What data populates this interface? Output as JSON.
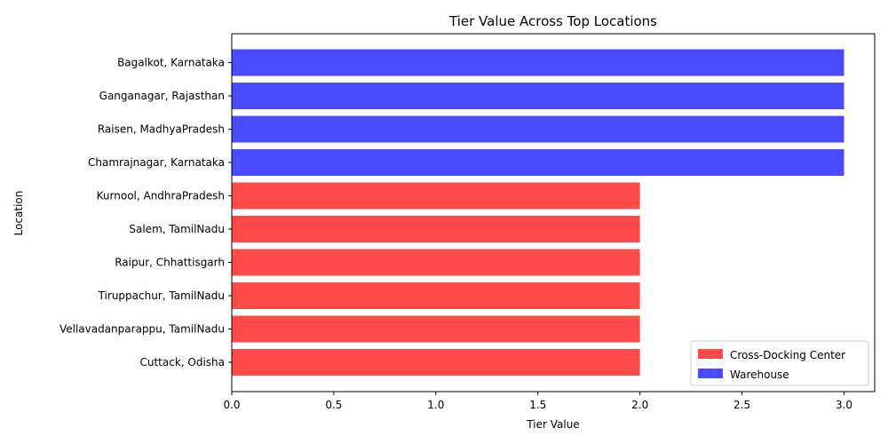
{
  "chart_data": {
    "type": "bar",
    "orientation": "horizontal",
    "title": "Tier Value Across Top Locations",
    "xlabel": "Tier Value",
    "ylabel": "Location",
    "xlim": [
      0.0,
      3.15
    ],
    "xticks": [
      "0.0",
      "0.5",
      "1.0",
      "1.5",
      "2.0",
      "2.5",
      "3.0"
    ],
    "xtick_values": [
      0.0,
      0.5,
      1.0,
      1.5,
      2.0,
      2.5,
      3.0
    ],
    "grid": false,
    "legend_position": "bottom-right",
    "legend": [
      {
        "name": "Cross-Docking Center",
        "color": "#ff4a4a"
      },
      {
        "name": "Warehouse",
        "color": "#4a4aff"
      }
    ],
    "categories": [
      "Bagalkot, Karnataka",
      "Ganganagar, Rajasthan",
      "Raisen, MadhyaPradesh",
      "Chamrajnagar, Karnataka",
      "Kurnool, AndhraPradesh",
      "Salem, TamilNadu",
      "Raipur, Chhattisgarh",
      "Tiruppachur, TamilNadu",
      "Vellavadanparappu, TamilNadu",
      "Cuttack, Odisha"
    ],
    "values": [
      3,
      3,
      3,
      3,
      2,
      2,
      2,
      2,
      2,
      2
    ],
    "bar_types": [
      "Warehouse",
      "Warehouse",
      "Warehouse",
      "Warehouse",
      "Cross-Docking Center",
      "Cross-Docking Center",
      "Cross-Docking Center",
      "Cross-Docking Center",
      "Cross-Docking Center",
      "Cross-Docking Center"
    ]
  }
}
